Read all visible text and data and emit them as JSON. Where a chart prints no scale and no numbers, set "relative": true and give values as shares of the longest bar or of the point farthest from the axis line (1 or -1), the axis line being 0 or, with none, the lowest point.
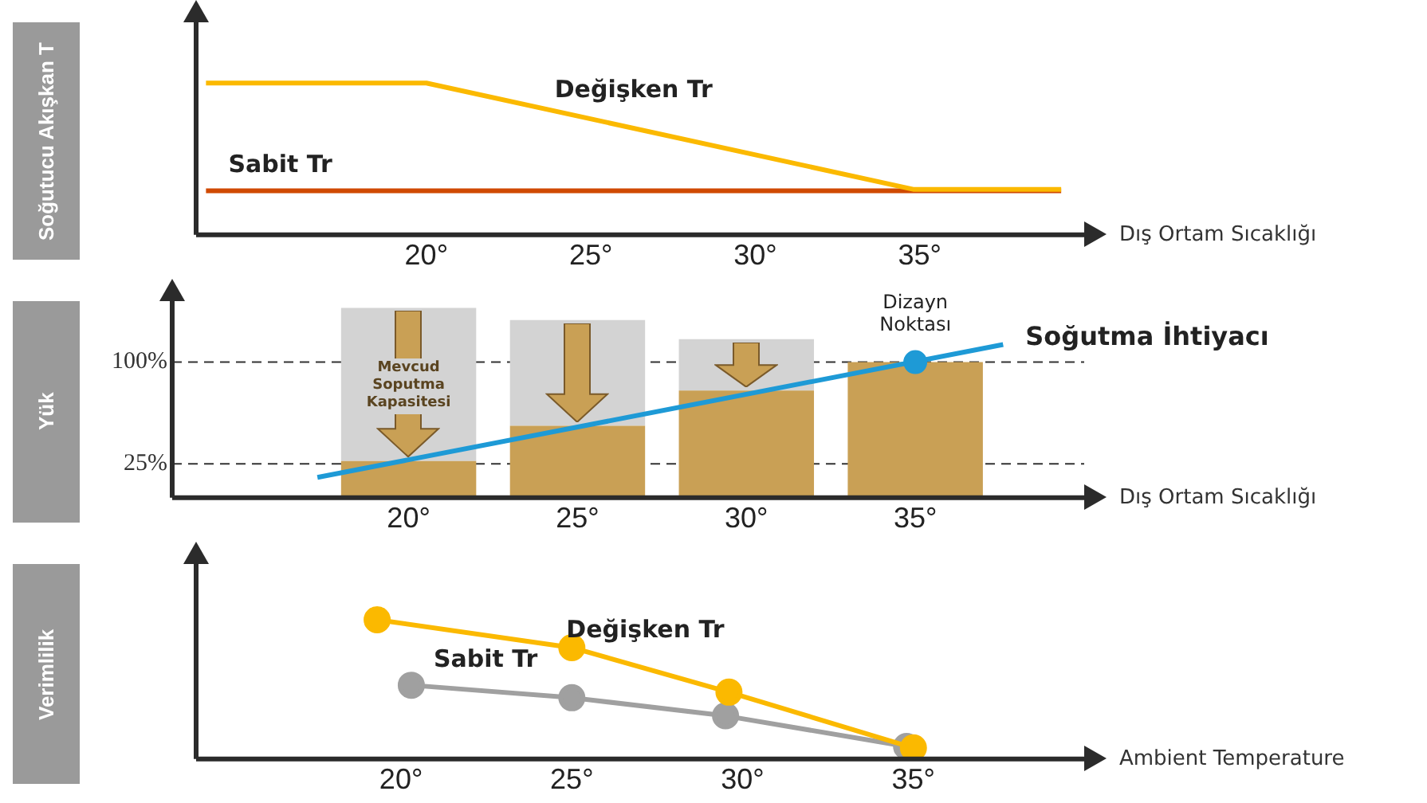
{
  "chart_data": [
    {
      "type": "line",
      "ylabel": "Soğutucu Akışkan T",
      "xlabel": "Dış Ortam Sıcaklığı",
      "relative": true,
      "xlim": [
        13,
        40
      ],
      "xticks": [
        {
          "value": 20,
          "label": "20°"
        },
        {
          "value": 25,
          "label": "25°"
        },
        {
          "value": 30,
          "label": "30°"
        },
        {
          "value": 35,
          "label": "35°"
        }
      ],
      "series": [
        {
          "name": "Değişken Tr",
          "color": "#fbb900",
          "x": [
            13.3,
            20,
            34.8,
            39.3
          ],
          "values": [
            1,
            1,
            0.3,
            0.3
          ]
        },
        {
          "name": "Sabit Tr",
          "color": "#d04a02",
          "x": [
            13.3,
            39.3
          ],
          "values": [
            0.29,
            0.29
          ]
        }
      ]
    },
    {
      "type": "bar",
      "stacked": true,
      "ylabel": "Yük",
      "xlabel": "Dış Ortam Sıcaklığı",
      "xlim": [
        13,
        40
      ],
      "xticks": [
        {
          "value": 20,
          "label": "20°"
        },
        {
          "value": 25,
          "label": "25°"
        },
        {
          "value": 30,
          "label": "30°"
        },
        {
          "value": 35,
          "label": "35°"
        }
      ],
      "ylim": [
        0,
        145
      ],
      "yticks": [
        {
          "value": 25,
          "label": "25%"
        },
        {
          "value": 100,
          "label": "100%"
        }
      ],
      "series": [
        {
          "color": "#c9a055",
          "x": [
            20,
            25,
            30,
            35
          ],
          "values": [
            27,
            53,
            79,
            100
          ]
        },
        {
          "name": "Mevcud Soputma Kapasitesi",
          "color": "#d3d3d3",
          "x": [
            20,
            25,
            30
          ],
          "values": [
            113,
            78,
            38
          ]
        },
        {
          "type": "line",
          "name": "Soğutma İhtiyacı",
          "color": "#1e9ad6",
          "x": [
            17.3,
            37.6
          ],
          "values": [
            15,
            113
          ]
        },
        {
          "type": "scatter",
          "color": "#1e9ad6",
          "x": [
            35
          ],
          "values": [
            100
          ]
        }
      ],
      "annotations": [
        {
          "text": "Dizayn Noktası",
          "x": 35,
          "y": 100
        }
      ],
      "ref_lines": [
        {
          "axis": "y",
          "value": 25,
          "label": null,
          "line_style": "dashed",
          "color": "#333333"
        },
        {
          "axis": "y",
          "value": 100,
          "label": null,
          "line_style": "dashed",
          "color": "#333333"
        }
      ]
    },
    {
      "type": "line",
      "ylabel": "Verimlilik",
      "xlabel": "Ambient Temperature",
      "relative": true,
      "marker": "circle",
      "xlim": [
        14,
        40
      ],
      "xticks": [
        {
          "value": 20,
          "label": "20°"
        },
        {
          "value": 25,
          "label": "25°"
        },
        {
          "value": 30,
          "label": "30°"
        },
        {
          "value": 35,
          "label": "35°"
        }
      ],
      "series": [
        {
          "name": "Değişken Tr",
          "color": "#fbb900",
          "x": [
            19.3,
            25,
            29.6,
            35
          ],
          "values": [
            1,
            0.8,
            0.48,
            0.08
          ]
        },
        {
          "name": "Sabit Tr",
          "color": "#a0a0a0",
          "x": [
            20.3,
            25,
            29.5,
            34.8
          ],
          "values": [
            0.53,
            0.44,
            0.31,
            0.09
          ]
        }
      ]
    }
  ]
}
